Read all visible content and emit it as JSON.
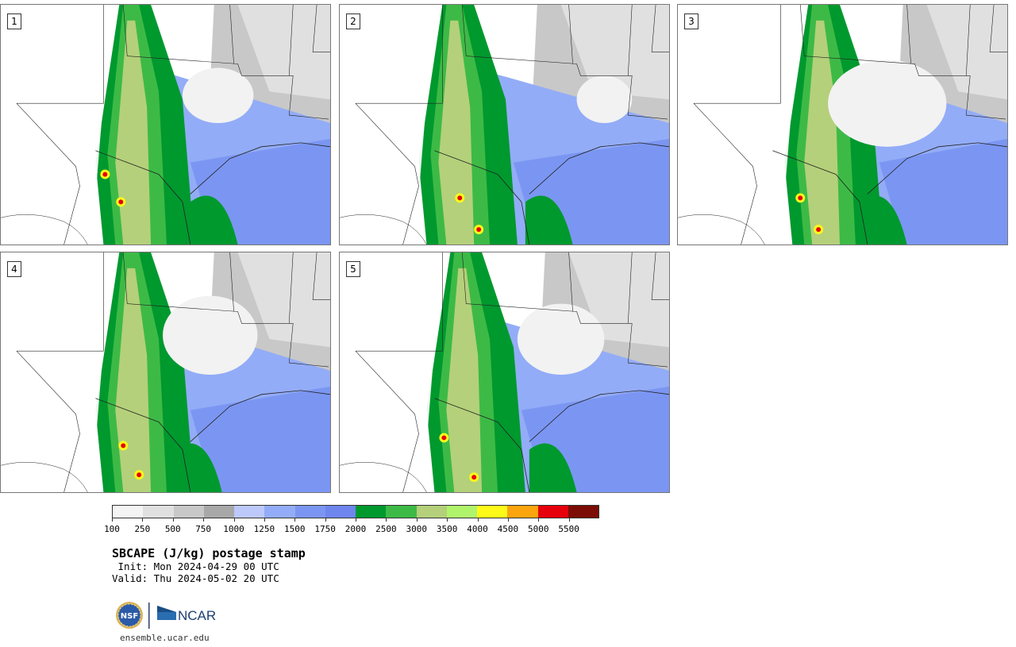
{
  "title": "SBCAPE (J/kg) postage stamp",
  "init": " Init: Mon 2024-04-29 00 UTC",
  "valid": "Valid: Thu 2024-05-02 20 UTC",
  "url": "ensemble.ucar.edu",
  "logos": {
    "nsf": "NSF",
    "ncar": "NCAR"
  },
  "panels": [
    {
      "label": "1"
    },
    {
      "label": "2"
    },
    {
      "label": "3"
    },
    {
      "label": "4"
    },
    {
      "label": "5"
    }
  ],
  "colorbar": {
    "tick_labels": [
      "100",
      "250",
      "500",
      "750",
      "1000",
      "1250",
      "1500",
      "1750",
      "2000",
      "2500",
      "3000",
      "3500",
      "4000",
      "4500",
      "5000",
      "5500"
    ],
    "colors": [
      "#f4f4f4",
      "#e0e0e0",
      "#c8c8c8",
      "#a8a8a8",
      "#bcc9fa",
      "#93acf7",
      "#7b96f2",
      "#6f86ee",
      "#00992e",
      "#3dba46",
      "#b4d07a",
      "#b0f46c",
      "#fdfa19",
      "#fca50f",
      "#e6000c",
      "#7b0d06"
    ]
  },
  "colors": {
    "land": "#ffffff",
    "outline": "#222222"
  }
}
